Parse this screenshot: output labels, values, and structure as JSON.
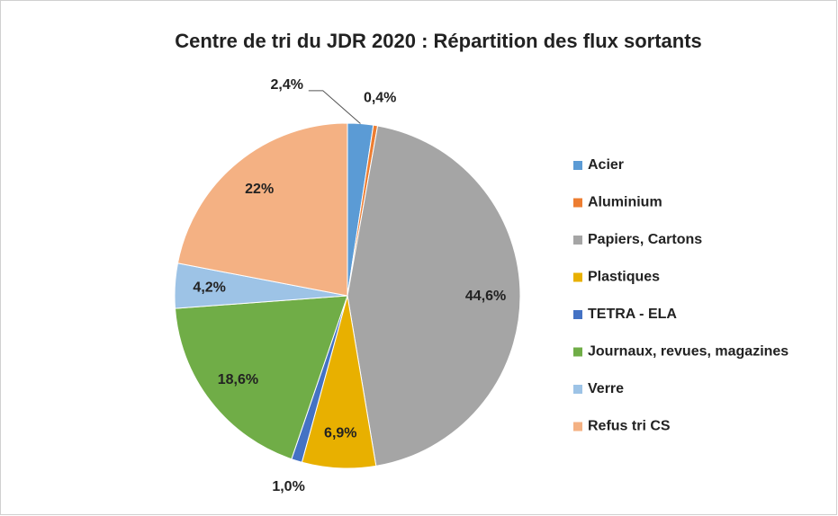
{
  "chart_data": {
    "type": "pie",
    "title": "Centre de tri du JDR 2020 : Répartition des flux sortants",
    "categories": [
      "Acier",
      "Aluminium",
      "Papiers, Cartons",
      "Plastiques",
      "TETRA - ELA",
      "Journaux, revues, magazines",
      "Verre",
      "Refus tri CS"
    ],
    "values": [
      2.4,
      0.4,
      44.6,
      6.9,
      1.0,
      18.6,
      4.2,
      22
    ],
    "value_labels": [
      "2,4%",
      "0,4%",
      "44,6%",
      "6,9%",
      "1,0%",
      "18,6%",
      "4,2%",
      "22%"
    ],
    "colors": [
      "#5b9bd5",
      "#ed7d31",
      "#a5a5a5",
      "#e8b000",
      "#4472c4",
      "#70ad47",
      "#9dc3e6",
      "#f4b183"
    ],
    "legend": "right"
  }
}
